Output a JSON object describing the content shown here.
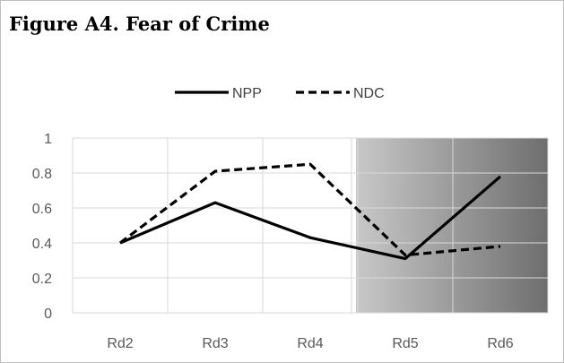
{
  "chart_data": {
    "type": "line",
    "title": "Figure A4. Fear of Crime",
    "categories": [
      "Rd2",
      "Rd3",
      "Rd4",
      "Rd5",
      "Rd6"
    ],
    "series": [
      {
        "name": "NPP",
        "style": "solid",
        "color": "#000000",
        "values": [
          0.4,
          0.63,
          0.43,
          0.31,
          0.78
        ]
      },
      {
        "name": "NDC",
        "style": "dashed",
        "color": "#000000",
        "values": [
          0.4,
          0.81,
          0.85,
          0.33,
          0.38
        ]
      }
    ],
    "ylim": [
      0,
      1
    ],
    "yticks": [
      "0",
      "0.2",
      "0.4",
      "0.6",
      "0.8",
      "1"
    ],
    "grid": true,
    "legend_position": "top-center",
    "shaded_region": {
      "from_category": "Rd5",
      "to_category": "Rd6",
      "colors": [
        "#c8c8c8",
        "#6e6e6e"
      ]
    }
  }
}
